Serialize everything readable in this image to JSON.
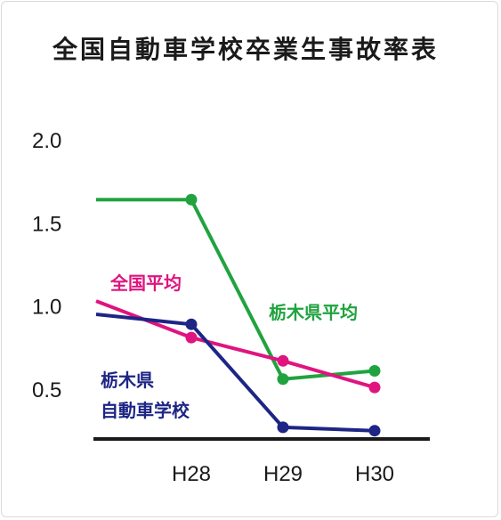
{
  "chart_data": {
    "type": "line",
    "title": "全国自動車学校卒業生事故率表",
    "categories": [
      "",
      "H28",
      "H29",
      "H30"
    ],
    "y_ticks": [
      "2.0",
      "1.5",
      "1.0",
      "0.5"
    ],
    "ylim": [
      0.3,
      2.0
    ],
    "grid": false,
    "series": [
      {
        "name": "栃木県平均",
        "label_lines": [
          "栃木県平均"
        ],
        "color": "#20a33f",
        "values": [
          1.64,
          1.64,
          0.56,
          0.61
        ],
        "markers": [
          false,
          true,
          true,
          true
        ]
      },
      {
        "name": "全国平均",
        "label_lines": [
          "全国平均"
        ],
        "color": "#e0147f",
        "values": [
          1.03,
          0.81,
          0.67,
          0.51
        ],
        "markers": [
          false,
          true,
          true,
          true
        ]
      },
      {
        "name": "栃木県自動車学校",
        "label_lines": [
          "栃木県",
          "自動車学校"
        ],
        "color": "#1d2585",
        "values": [
          0.95,
          0.89,
          0.27,
          0.25
        ],
        "markers": [
          false,
          true,
          true,
          true
        ]
      }
    ]
  }
}
